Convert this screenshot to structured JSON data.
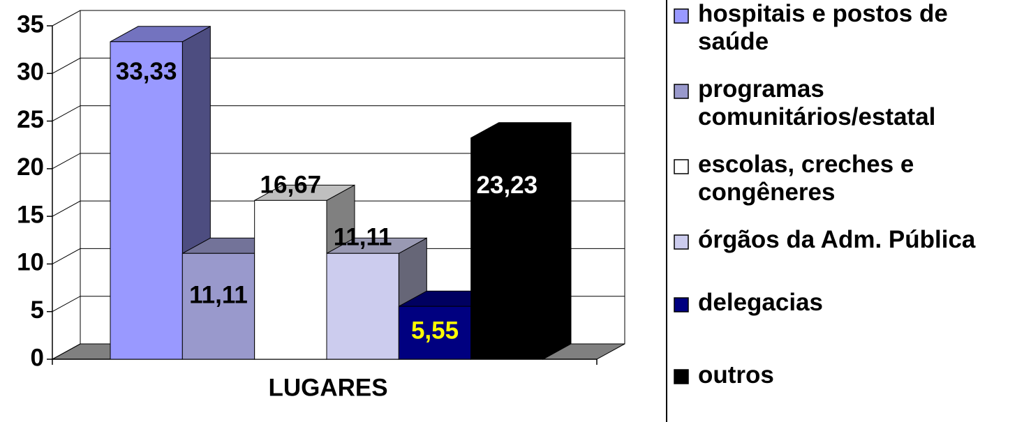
{
  "chart_data": {
    "type": "bar3d",
    "categories": [
      "LUGARES"
    ],
    "series": [
      {
        "name": "hospitais e postos de saúde",
        "color": "#9999ff",
        "values": [
          33.33
        ],
        "value_labels": [
          "33,33"
        ]
      },
      {
        "name": "programas comunitários/estatal",
        "color": "#9999cc",
        "values": [
          11.11
        ],
        "value_labels": [
          "11,11"
        ]
      },
      {
        "name": "escolas, creches e congêneres",
        "color": "#ffffff",
        "values": [
          16.67
        ],
        "value_labels": [
          "16,67"
        ]
      },
      {
        "name": "órgãos da Adm. Pública",
        "color": "#ccccee",
        "values": [
          11.11
        ],
        "value_labels": [
          "11,11"
        ]
      },
      {
        "name": "delegacias",
        "color": "#000080",
        "values": [
          5.55
        ],
        "value_labels": [
          "5,55"
        ],
        "label_color": "#ffff00"
      },
      {
        "name": "outros",
        "color": "#000000",
        "values": [
          23.23
        ],
        "value_labels": [
          "23,23"
        ],
        "label_color": "#ffffff"
      }
    ],
    "ylim": [
      0,
      35
    ],
    "yticks": [
      0,
      5,
      10,
      15,
      20,
      25,
      30,
      35
    ],
    "grid": true,
    "legend": "right"
  }
}
